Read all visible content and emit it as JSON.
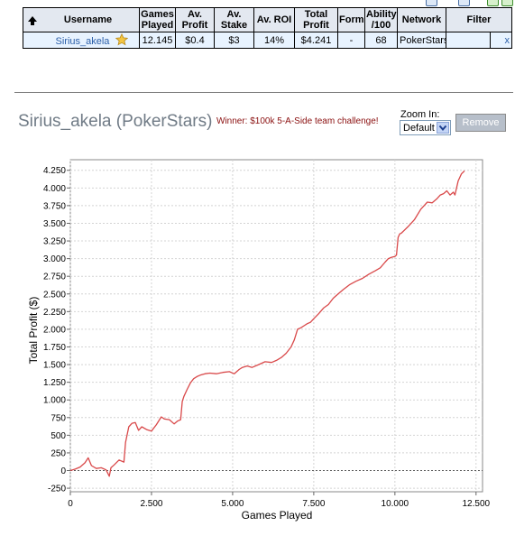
{
  "table": {
    "headers": [
      "Username",
      "Games Played",
      "Av. Profit",
      "Av. Stake",
      "Av. ROI",
      "Total Profit",
      "Form",
      "Ability /100",
      "Network",
      "Filter"
    ],
    "row": {
      "username": "Sirius_akela",
      "games_played": "12.145",
      "av_profit": "$0.4",
      "av_stake": "$3",
      "av_roi": "14%",
      "total_profit": "$4.241",
      "form": "-",
      "ability": "68",
      "network": "PokerStars",
      "filter": "",
      "remove_x": "x"
    }
  },
  "heading": {
    "player": "Sirius_akela (PokerStars)",
    "winner": "Winner: $100k 5-A-Side team challenge!"
  },
  "controls": {
    "zoom_label": "Zoom In:",
    "zoom_value": "Default",
    "remove_label": "Remove"
  },
  "colors": {
    "line": "#d9494a",
    "header_bg": "#e3e8f0",
    "row_bg": "#e8f3ff"
  },
  "chart_data": {
    "type": "line",
    "xlabel": "Games Played",
    "ylabel": "Total Profit ($)",
    "xlim": [
      0,
      12700
    ],
    "ylim": [
      -300,
      4400
    ],
    "xticks": [
      0,
      2500,
      5000,
      7500,
      10000,
      12500
    ],
    "xtick_labels": [
      "0",
      "2.500",
      "5.000",
      "7.500",
      "10.000",
      "12.500"
    ],
    "yticks": [
      -250,
      0,
      250,
      500,
      750,
      1000,
      1250,
      1500,
      1750,
      2000,
      2250,
      2500,
      2750,
      3000,
      3250,
      3500,
      3750,
      4000,
      4250
    ],
    "ytick_labels": [
      "-250",
      "0",
      "250",
      "500",
      "750",
      "1.000",
      "1.250",
      "1.500",
      "1.750",
      "2.000",
      "2.250",
      "2.500",
      "2.750",
      "3.000",
      "3.250",
      "3.500",
      "3.750",
      "4.000",
      "4.250"
    ],
    "grid": true,
    "zero_line": true,
    "series": [
      {
        "x": [
          0,
          150,
          300,
          450,
          550,
          650,
          800,
          950,
          1100,
          1200,
          1250,
          1350,
          1500,
          1650,
          1700,
          1800,
          1900,
          2000,
          2100,
          2200,
          2350,
          2500,
          2650,
          2800,
          2900,
          3050,
          3200,
          3300,
          3400,
          3450,
          3500,
          3600,
          3700,
          3800,
          3900,
          4000,
          4150,
          4300,
          4500,
          4700,
          4900,
          5050,
          5200,
          5300,
          5450,
          5600,
          5800,
          6000,
          6200,
          6350,
          6500,
          6650,
          6800,
          6900,
          7000,
          7100,
          7200,
          7300,
          7400,
          7500,
          7650,
          7800,
          7950,
          8100,
          8250,
          8400,
          8600,
          8800,
          9000,
          9200,
          9400,
          9550,
          9700,
          9800,
          9900,
          10000,
          10050,
          10100,
          10150,
          10200,
          10400,
          10600,
          10800,
          10900,
          11000,
          11150,
          11300,
          11400,
          11500,
          11600,
          11700,
          11800,
          11850,
          11900,
          11950,
          12000,
          12050,
          12145
        ],
        "y": [
          0,
          20,
          50,
          110,
          180,
          70,
          30,
          40,
          10,
          -80,
          40,
          80,
          150,
          120,
          400,
          620,
          670,
          680,
          570,
          620,
          580,
          560,
          650,
          760,
          730,
          720,
          660,
          700,
          720,
          980,
          1050,
          1150,
          1240,
          1300,
          1330,
          1350,
          1370,
          1380,
          1370,
          1390,
          1400,
          1370,
          1430,
          1460,
          1480,
          1460,
          1500,
          1540,
          1530,
          1560,
          1600,
          1660,
          1750,
          1850,
          2000,
          2020,
          2050,
          2080,
          2100,
          2150,
          2220,
          2300,
          2350,
          2440,
          2500,
          2560,
          2630,
          2680,
          2720,
          2780,
          2830,
          2870,
          2950,
          3000,
          3020,
          3030,
          3050,
          3300,
          3350,
          3360,
          3450,
          3550,
          3700,
          3750,
          3800,
          3790,
          3850,
          3900,
          3920,
          3960,
          3900,
          3940,
          3900,
          4000,
          4100,
          4150,
          4200,
          4241
        ]
      }
    ]
  }
}
